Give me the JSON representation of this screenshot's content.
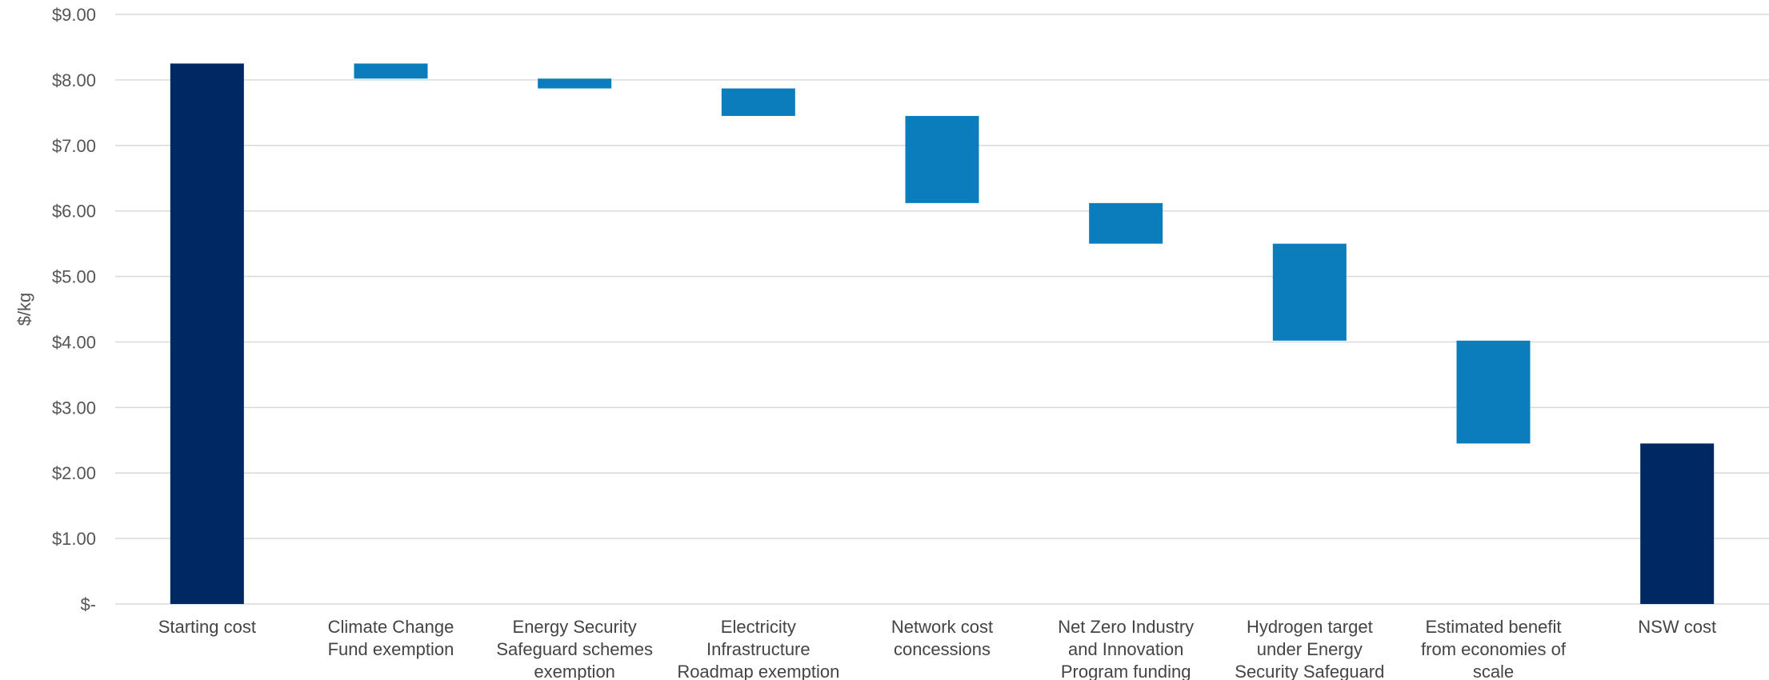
{
  "chart_data": {
    "type": "waterfall",
    "ylabel": "$/kg",
    "ylim": [
      0,
      9
    ],
    "yticks": [
      {
        "value": 0,
        "label": "$-"
      },
      {
        "value": 1,
        "label": "$1.00"
      },
      {
        "value": 2,
        "label": "$2.00"
      },
      {
        "value": 3,
        "label": "$3.00"
      },
      {
        "value": 4,
        "label": "$4.00"
      },
      {
        "value": 5,
        "label": "$5.00"
      },
      {
        "value": 6,
        "label": "$6.00"
      },
      {
        "value": 7,
        "label": "$7.00"
      },
      {
        "value": 8,
        "label": "$8.00"
      },
      {
        "value": 9,
        "label": "$9.00"
      }
    ],
    "grid": true,
    "colors": {
      "total": "#002863",
      "change": "#0b7dbd"
    },
    "bars": [
      {
        "category": "Starting cost",
        "label_lines": [
          "Starting cost"
        ],
        "kind": "total",
        "start": 0,
        "end": 8.25
      },
      {
        "category": "Climate Change Fund exemption",
        "label_lines": [
          "Climate Change",
          "Fund exemption"
        ],
        "kind": "change",
        "start": 8.25,
        "end": 8.02
      },
      {
        "category": "Energy Security Safeguard schemes exemption",
        "label_lines": [
          "Energy Security",
          "Safeguard schemes",
          "exemption"
        ],
        "kind": "change",
        "start": 8.02,
        "end": 7.87
      },
      {
        "category": "Electricity Infrastructure Roadmap exemption",
        "label_lines": [
          "Electricity",
          "Infrastructure",
          "Roadmap exemption"
        ],
        "kind": "change",
        "start": 7.87,
        "end": 7.45
      },
      {
        "category": "Network cost concessions",
        "label_lines": [
          "Network cost",
          "concessions"
        ],
        "kind": "change",
        "start": 7.45,
        "end": 6.12
      },
      {
        "category": "Net Zero Industry and Innovation Program funding",
        "label_lines": [
          "Net Zero Industry",
          "and Innovation",
          "Program funding"
        ],
        "kind": "change",
        "start": 6.12,
        "end": 5.5
      },
      {
        "category": "Hydrogen target under Energy Security Safeguard",
        "label_lines": [
          "Hydrogen target",
          "under Energy",
          "Security Safeguard"
        ],
        "kind": "change",
        "start": 5.5,
        "end": 4.02
      },
      {
        "category": "Estimated benefit from economies of scale",
        "label_lines": [
          "Estimated benefit",
          "from economies of",
          "scale"
        ],
        "kind": "change",
        "start": 4.02,
        "end": 2.45
      },
      {
        "category": "NSW cost",
        "label_lines": [
          "NSW cost"
        ],
        "kind": "total",
        "start": 0,
        "end": 2.45
      }
    ]
  }
}
